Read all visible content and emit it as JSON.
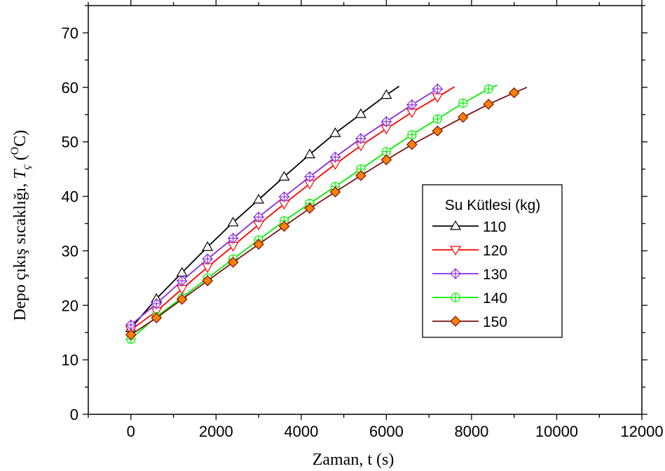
{
  "chart_data": {
    "type": "line",
    "xlabel": "Zaman, t (s)",
    "ylabel_main": "Depo çıkış sıcaklığı, ",
    "ylabel_var": "T",
    "ylabel_sub": "ç",
    "ylabel_unit_open": " (",
    "ylabel_unit_sup": "O",
    "ylabel_unit_close": "C)",
    "xlim": [
      -1000,
      12000
    ],
    "ylim": [
      0,
      75
    ],
    "xticks": [
      0,
      2000,
      4000,
      6000,
      8000,
      10000,
      12000
    ],
    "yticks": [
      0,
      10,
      20,
      30,
      40,
      50,
      60,
      70
    ],
    "grid": false,
    "legend": {
      "title": "Su Kütlesi (kg)",
      "position": "right"
    },
    "series": [
      {
        "name": "110",
        "color": "#000000",
        "marker": "triangle-up",
        "x": [
          0,
          600,
          1200,
          1800,
          2400,
          3000,
          3600,
          4200,
          4800,
          5400,
          6000,
          6300
        ],
        "y": [
          15.8,
          21.2,
          26.0,
          30.7,
          35.2,
          39.4,
          43.6,
          47.7,
          51.6,
          55.1,
          58.6,
          60.2
        ],
        "marker_x": [
          0,
          600,
          1200,
          1800,
          2400,
          3000,
          3600,
          4200,
          4800,
          5400,
          6000
        ]
      },
      {
        "name": "120",
        "color": "#ff0000",
        "marker": "triangle-down",
        "x": [
          0,
          600,
          1200,
          1800,
          2400,
          3000,
          3600,
          4200,
          4800,
          5400,
          6000,
          6600,
          7200,
          7600
        ],
        "y": [
          15.5,
          18.9,
          23.0,
          27.0,
          30.9,
          34.8,
          38.6,
          42.3,
          45.9,
          49.3,
          52.4,
          55.4,
          58.2,
          60.1
        ],
        "marker_x": [
          0,
          600,
          1200,
          1800,
          2400,
          3000,
          3600,
          4200,
          4800,
          5400,
          6000,
          6600,
          7200
        ]
      },
      {
        "name": "130",
        "color": "#8a2be2",
        "marker": "diamond-plus",
        "x": [
          0,
          600,
          1200,
          1800,
          2400,
          3000,
          3600,
          4200,
          4800,
          5400,
          6000,
          6600,
          7200
        ],
        "y": [
          16.4,
          20.3,
          24.5,
          28.5,
          32.3,
          36.2,
          39.9,
          43.6,
          47.2,
          50.6,
          53.7,
          56.8,
          59.7
        ],
        "marker_x": [
          0,
          600,
          1200,
          1800,
          2400,
          3000,
          3600,
          4200,
          4800,
          5400,
          6000,
          6600,
          7200
        ]
      },
      {
        "name": "140",
        "color": "#00ee00",
        "marker": "circle-plus",
        "x": [
          0,
          600,
          1200,
          1800,
          2400,
          3000,
          3600,
          4200,
          4800,
          5400,
          6000,
          6600,
          7200,
          7800,
          8400,
          8600
        ],
        "y": [
          13.8,
          17.9,
          21.4,
          25.0,
          28.5,
          32.0,
          35.5,
          38.7,
          41.8,
          45.0,
          48.2,
          51.3,
          54.2,
          57.1,
          59.7,
          60.4
        ],
        "marker_x": [
          0,
          600,
          1200,
          1800,
          2400,
          3000,
          3600,
          4200,
          4800,
          5400,
          6000,
          6600,
          7200,
          7800,
          8400
        ]
      },
      {
        "name": "150",
        "color": "#7a1010",
        "marker": "diamond-filled",
        "marker_fill": "#ff8000",
        "x": [
          0,
          600,
          1200,
          1800,
          2400,
          3000,
          3600,
          4200,
          4800,
          5400,
          6000,
          6600,
          7200,
          7800,
          8400,
          9000,
          9300
        ],
        "y": [
          14.6,
          17.7,
          21.1,
          24.5,
          27.9,
          31.2,
          34.5,
          37.8,
          40.8,
          43.8,
          46.7,
          49.5,
          52.0,
          54.5,
          56.9,
          59.0,
          60.0
        ],
        "marker_x": [
          0,
          600,
          1200,
          1800,
          2400,
          3000,
          3600,
          4200,
          4800,
          5400,
          6000,
          6600,
          7200,
          7800,
          8400,
          9000
        ]
      }
    ]
  }
}
